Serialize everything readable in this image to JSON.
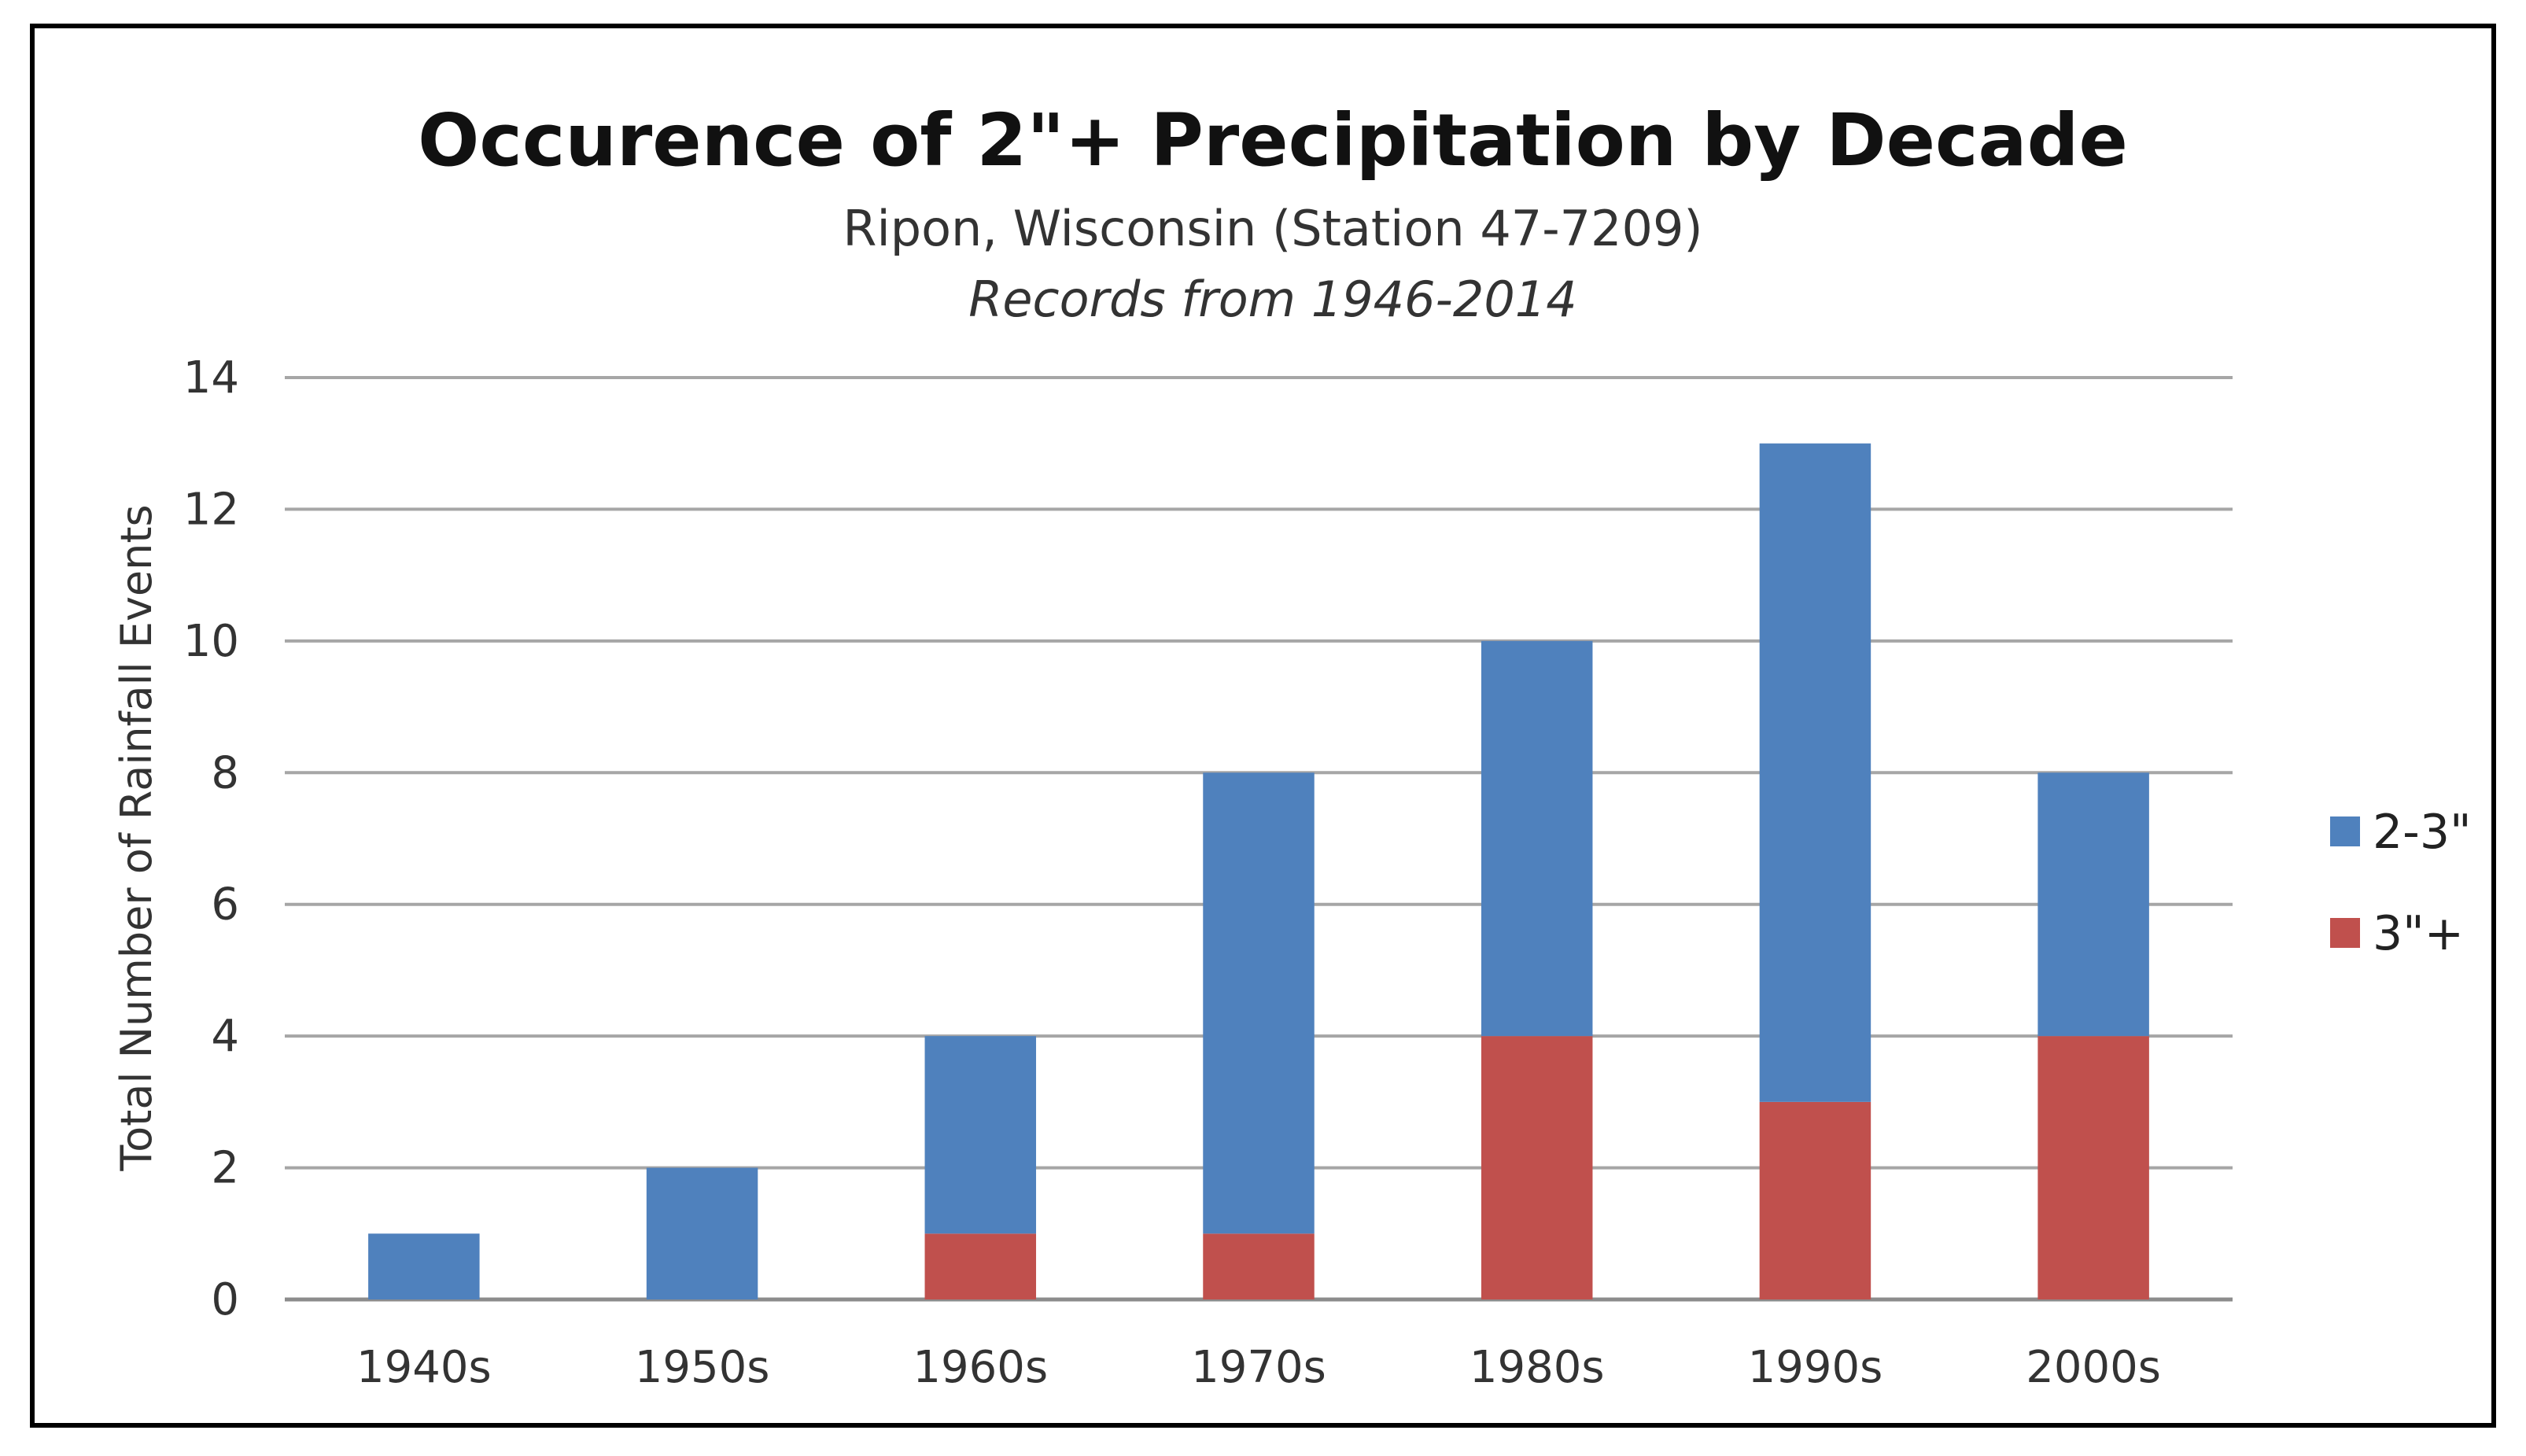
{
  "chart_data": {
    "type": "bar",
    "stacked": true,
    "title": "Occurence of 2\"+ Precipitation by Decade",
    "subtitle": "Ripon, Wisconsin (Station 47-7209)",
    "note": "Records from 1946-2014",
    "xlabel": "",
    "ylabel": "Total Number of Rainfall Events",
    "ylim": [
      0,
      14
    ],
    "yticks": [
      0,
      2,
      4,
      6,
      8,
      10,
      12,
      14
    ],
    "grid": true,
    "legend_position": "right",
    "categories": [
      "1940s",
      "1950s",
      "1960s",
      "1970s",
      "1980s",
      "1990s",
      "2000s"
    ],
    "series": [
      {
        "name": "3\"+",
        "color": "#c0504d",
        "values": [
          0,
          0,
          1,
          1,
          4,
          3,
          4
        ]
      },
      {
        "name": "2-3\"",
        "color": "#4f81bd",
        "values": [
          1,
          2,
          3,
          7,
          6,
          10,
          4
        ]
      }
    ],
    "legend_order": [
      "2-3\"",
      "3\"+"
    ]
  }
}
